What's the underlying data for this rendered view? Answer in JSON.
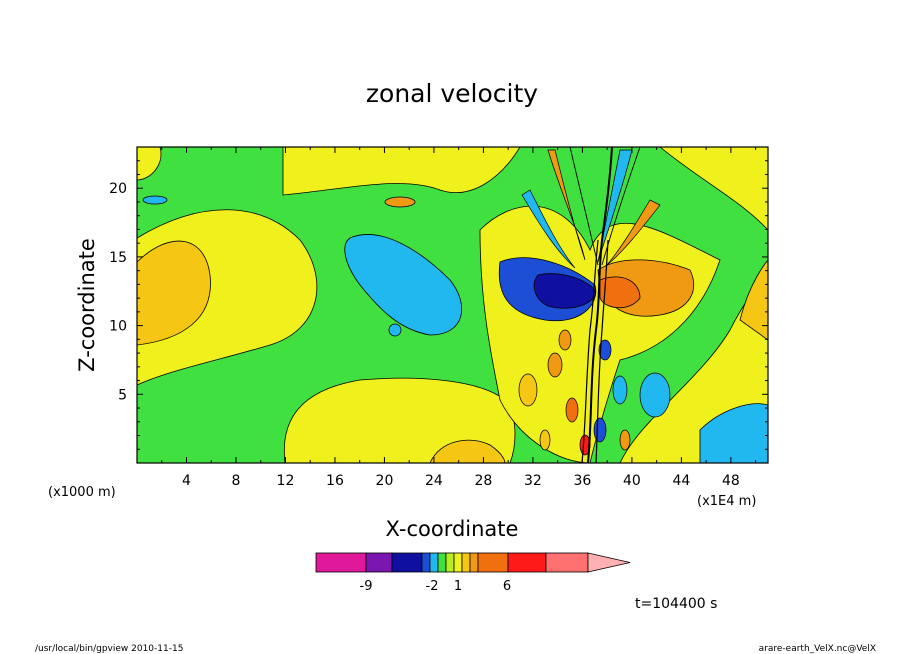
{
  "chart_data": {
    "type": "contour",
    "title": "zonal velocity",
    "xlabel": "X-coordinate",
    "ylabel": "Z-coordinate",
    "x_unit_left": "(x1000 m)",
    "x_unit_right": "(x1E4 m)",
    "x_ticks": [
      "4",
      "8",
      "12",
      "16",
      "20",
      "24",
      "28",
      "32",
      "36",
      "40",
      "44",
      "48"
    ],
    "y_ticks": [
      "5",
      "10",
      "15",
      "20"
    ],
    "xlim": [
      0,
      51
    ],
    "ylim": [
      0,
      23
    ],
    "colorbar": {
      "labels": [
        "-9",
        "-2",
        "1",
        "6"
      ],
      "colors": [
        "#e0199a",
        "#7b16b0",
        "#1010a0",
        "#1c4fd6",
        "#21b8f0",
        "#3fe040",
        "#b8ee20",
        "#f0f01c",
        "#f5c714",
        "#f09a14",
        "#f07010",
        "#ff1a1a",
        "#ff7070",
        "#ffb0b0"
      ]
    },
    "time_label": "t=104400 s"
  },
  "footer": {
    "left": "/usr/local/bin/gpview   2010-11-15",
    "right": "arare-earth_VelX.nc@VelX"
  }
}
